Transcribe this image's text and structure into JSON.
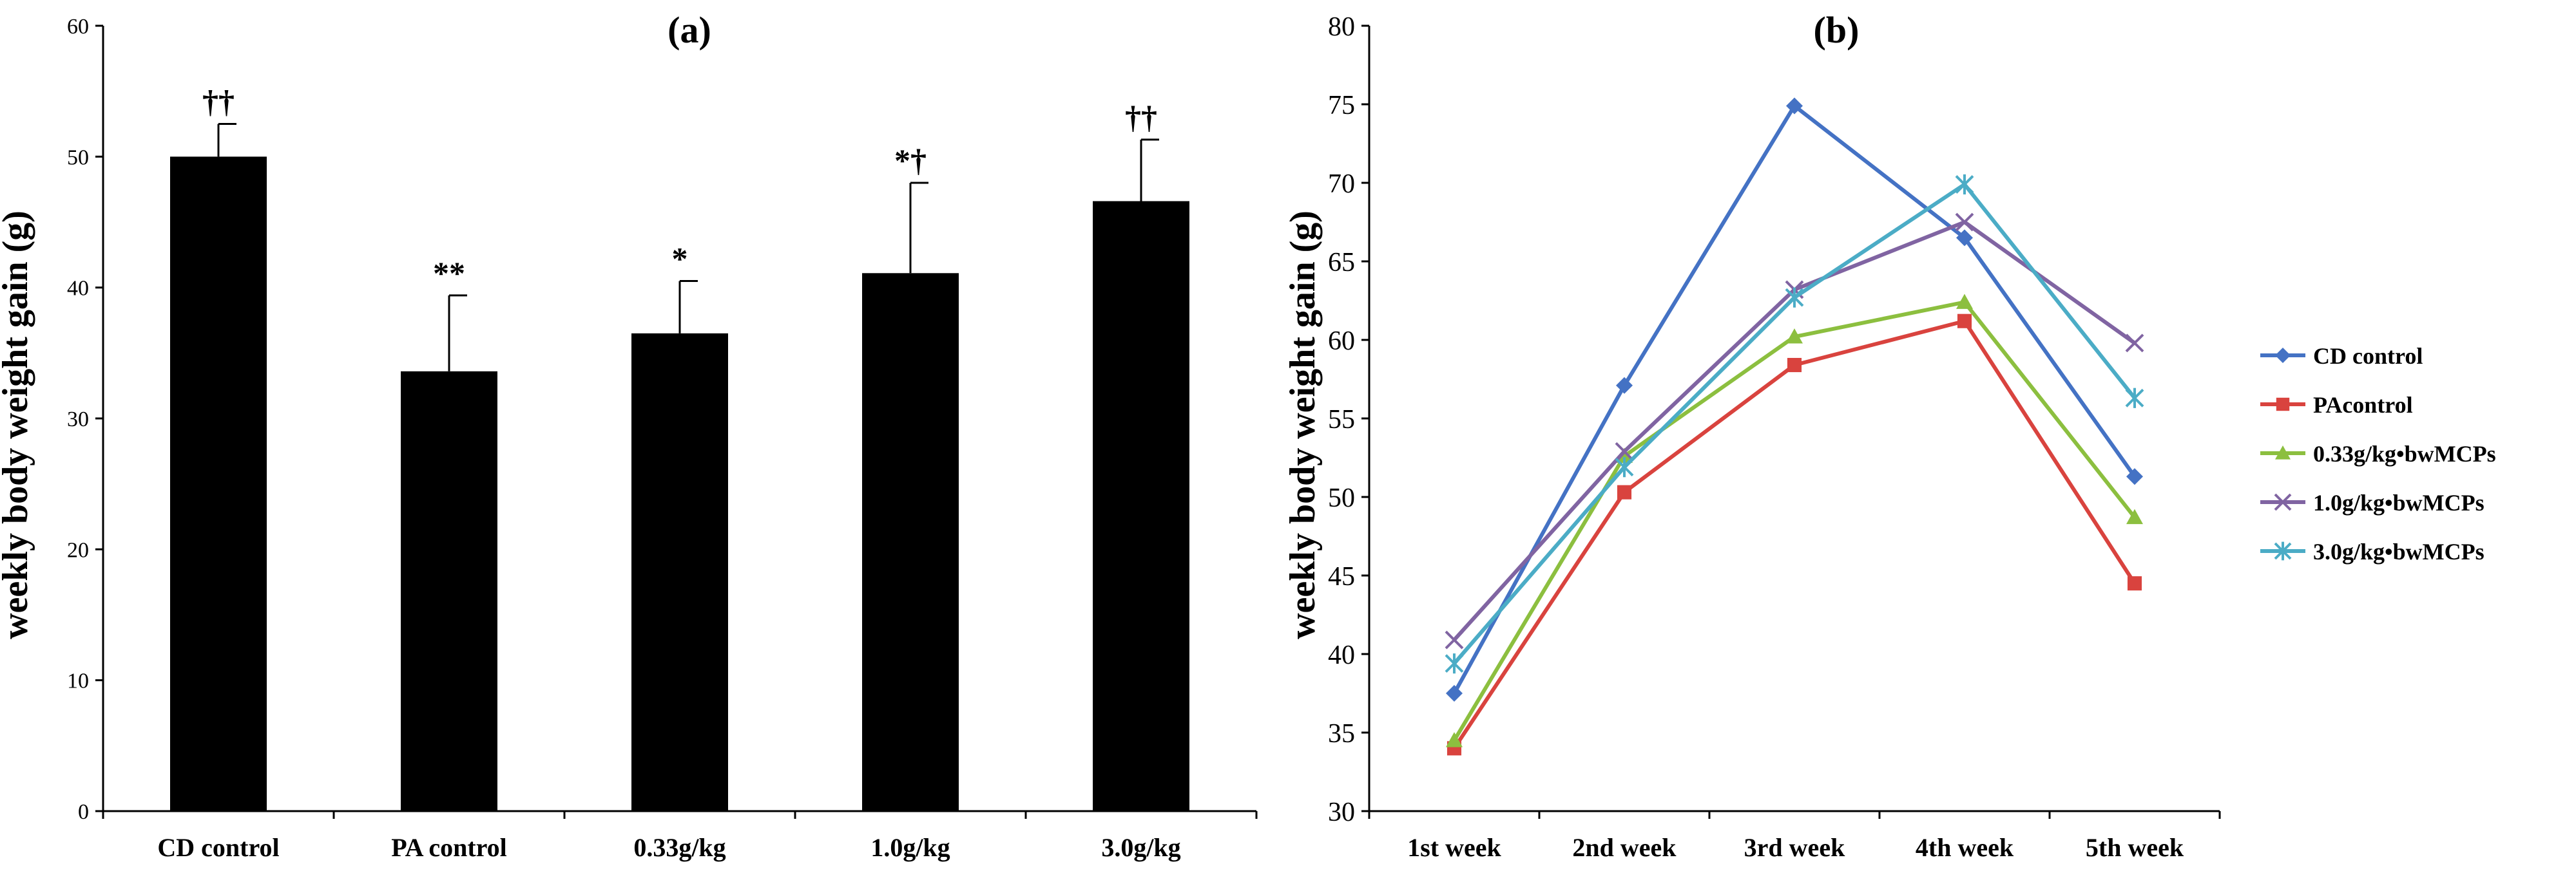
{
  "chart_data": [
    {
      "type": "bar",
      "title": "(a)",
      "xlabel": "",
      "ylabel": "weekly body weight gain (g)",
      "ylim": [
        0,
        60
      ],
      "yticks": [
        0,
        10,
        20,
        30,
        40,
        50,
        60
      ],
      "categories": [
        "CD control",
        "PA control",
        "0.33g/kg",
        "1.0g/kg",
        "3.0g/kg"
      ],
      "values": [
        50.0,
        33.6,
        36.5,
        41.1,
        46.6
      ],
      "error": [
        2.5,
        5.8,
        4.0,
        6.9,
        4.7
      ],
      "annotations": [
        "††",
        "**",
        "*",
        "*†",
        "††"
      ],
      "bar_color": "#000000",
      "grid": false
    },
    {
      "type": "line",
      "title": "(b)",
      "xlabel": "",
      "ylabel": "weekly body weight gain (g)",
      "ylim": [
        30,
        80
      ],
      "yticks": [
        30,
        35,
        40,
        45,
        50,
        55,
        60,
        65,
        70,
        75,
        80
      ],
      "categories": [
        "1st week",
        "2nd week",
        "3rd week",
        "4th week",
        "5th week"
      ],
      "grid": false,
      "legend": "right",
      "series": [
        {
          "name": "CD control",
          "color": "#4472c4",
          "marker": "diamond",
          "values": [
            37.5,
            57.1,
            74.9,
            66.5,
            51.3
          ]
        },
        {
          "name": "PAcontrol",
          "color": "#d9433e",
          "marker": "square",
          "values": [
            34.0,
            50.3,
            58.4,
            61.2,
            44.5
          ]
        },
        {
          "name": "0.33g/kg•bwMCPs",
          "color": "#8cbf3f",
          "marker": "triangle",
          "values": [
            34.5,
            52.6,
            60.2,
            62.4,
            48.7
          ]
        },
        {
          "name": "1.0g/kg•bwMCPs",
          "color": "#8064a2",
          "marker": "x",
          "values": [
            40.9,
            52.9,
            63.2,
            67.5,
            59.8
          ]
        },
        {
          "name": "3.0g/kg•bwMCPs",
          "color": "#4bacc6",
          "marker": "star",
          "values": [
            39.4,
            51.9,
            62.7,
            69.9,
            56.3
          ]
        }
      ]
    }
  ]
}
